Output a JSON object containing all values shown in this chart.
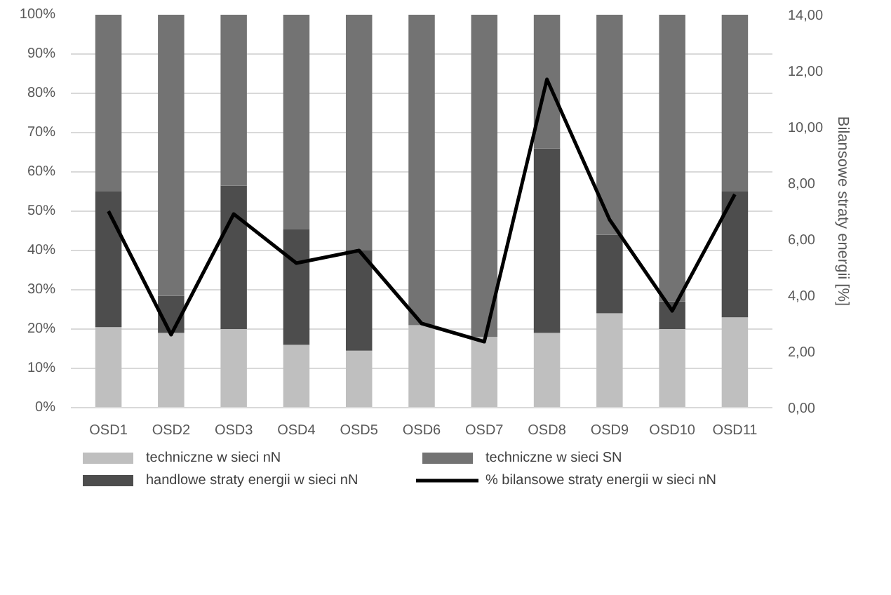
{
  "chart_data": {
    "type": "bar",
    "stacked": true,
    "categories": [
      "OSD1",
      "OSD2",
      "OSD3",
      "OSD4",
      "OSD5",
      "OSD6",
      "OSD7",
      "OSD8",
      "OSD9",
      "OSD10",
      "OSD11"
    ],
    "series": [
      {
        "name": "techniczne w sieci nN",
        "color": "#bfbfbf",
        "values": [
          20.5,
          19,
          20,
          16,
          14.5,
          21,
          18,
          19,
          24,
          20,
          23
        ]
      },
      {
        "name": "handlowe straty energii w sieci nN",
        "color": "#4d4d4d",
        "values": [
          34.5,
          9.5,
          36.5,
          29.5,
          25.5,
          0,
          0,
          47,
          20,
          7,
          32
        ]
      },
      {
        "name": "techniczne w sieci SN",
        "color": "#737373",
        "values": [
          45,
          71.5,
          43.5,
          54.5,
          60,
          79,
          82,
          34,
          56,
          73,
          45
        ]
      },
      {
        "name": "% bilansowe straty energii w sieci nN",
        "type": "line",
        "axis": "y2",
        "color": "#000000",
        "values": [
          7.0,
          2.6,
          6.9,
          5.15,
          5.6,
          3.0,
          2.35,
          11.7,
          6.7,
          3.45,
          7.6
        ]
      }
    ],
    "ylim": [
      0,
      100
    ],
    "yticks": [
      {
        "value": 0,
        "label": "0%"
      },
      {
        "value": 10,
        "label": "10%"
      },
      {
        "value": 20,
        "label": "20%"
      },
      {
        "value": 30,
        "label": "30%"
      },
      {
        "value": 40,
        "label": "40%"
      },
      {
        "value": 50,
        "label": "50%"
      },
      {
        "value": 60,
        "label": "60%"
      },
      {
        "value": 70,
        "label": "70%"
      },
      {
        "value": 80,
        "label": "80%"
      },
      {
        "value": 90,
        "label": "90%"
      },
      {
        "value": 100,
        "label": "100%"
      }
    ],
    "y2lim": [
      0,
      14
    ],
    "y2ticks": [
      {
        "value": 0,
        "label": "0,00"
      },
      {
        "value": 2,
        "label": "2,00"
      },
      {
        "value": 4,
        "label": "4,00"
      },
      {
        "value": 6,
        "label": "6,00"
      },
      {
        "value": 8,
        "label": "8,00"
      },
      {
        "value": 10,
        "label": "10,00"
      },
      {
        "value": 12,
        "label": "12,00"
      },
      {
        "value": 14,
        "label": "14,00"
      }
    ],
    "y2label": "Bilansowe straty energii [%]",
    "grid": "y",
    "legend": "bottom"
  }
}
